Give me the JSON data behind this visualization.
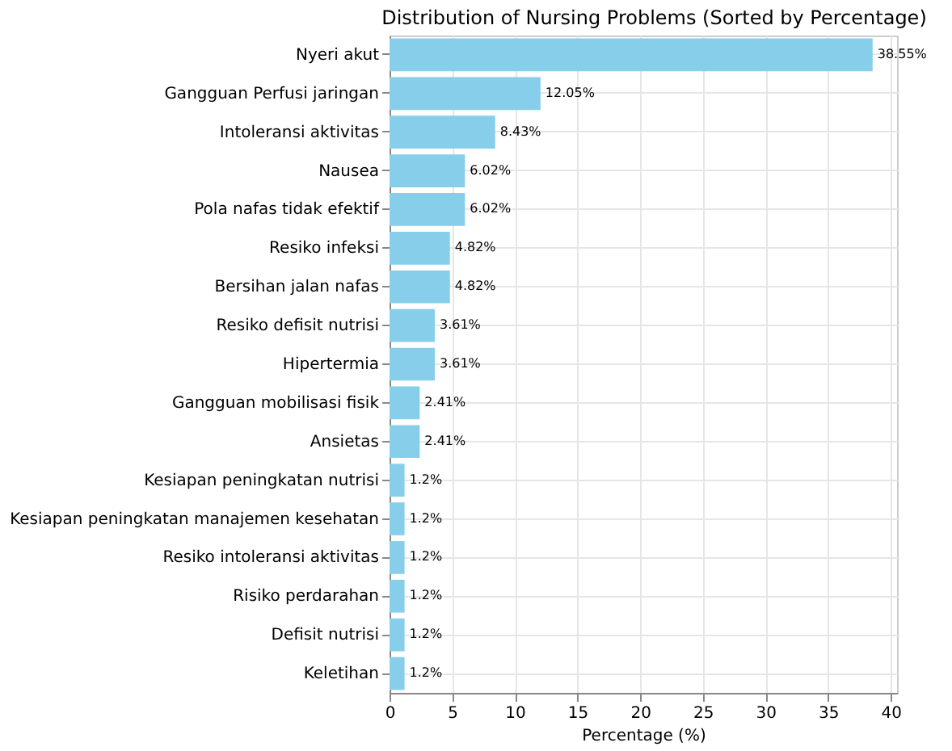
{
  "chart_data": {
    "type": "bar",
    "orientation": "horizontal",
    "title": "Distribution of Nursing Problems (Sorted by Percentage)",
    "xlabel": "Percentage (%)",
    "categories": [
      "Nyeri akut",
      "Gangguan Perfusi jaringan",
      "Intoleransi aktivitas",
      "Nausea",
      "Pola nafas tidak efektif",
      "Resiko infeksi",
      "Bersihan jalan nafas",
      "Resiko defisit nutrisi",
      "Hipertermia",
      "Gangguan mobilisasi fisik",
      "Ansietas",
      "Kesiapan peningkatan nutrisi",
      "Kesiapan peningkatan manajemen kesehatan",
      "Resiko intoleransi aktivitas",
      "Risiko perdarahan",
      "Defisit nutrisi",
      "Keletihan"
    ],
    "values": [
      38.55,
      12.05,
      8.43,
      6.02,
      6.02,
      4.82,
      4.82,
      3.61,
      3.61,
      2.41,
      2.41,
      1.2,
      1.2,
      1.2,
      1.2,
      1.2,
      1.2
    ],
    "value_labels": [
      "38.55%",
      "12.05%",
      "8.43%",
      "6.02%",
      "6.02%",
      "4.82%",
      "4.82%",
      "3.61%",
      "3.61%",
      "2.41%",
      "2.41%",
      "1.2%",
      "1.2%",
      "1.2%",
      "1.2%",
      "1.2%",
      "1.2%"
    ],
    "color": "#87ceeb",
    "xlim": [
      0,
      40.5
    ],
    "xticks": [
      0,
      5,
      10,
      15,
      20,
      25,
      30,
      35,
      40
    ],
    "grid": true
  }
}
